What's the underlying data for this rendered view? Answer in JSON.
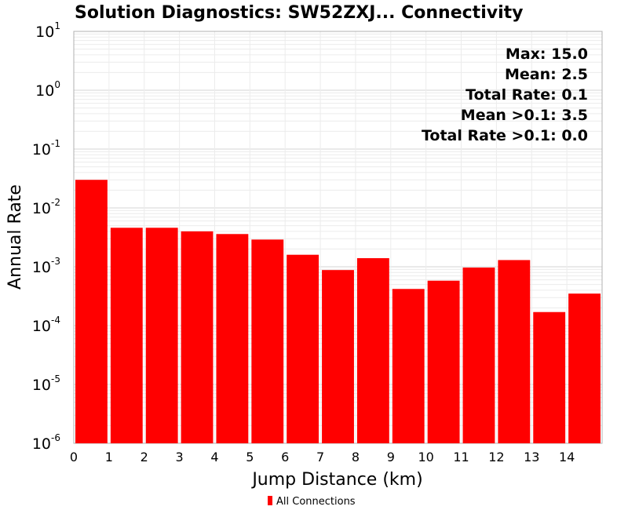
{
  "chart_data": {
    "type": "bar",
    "title": "Solution Diagnostics: SW52ZXJ... Connectivity",
    "xlabel": "Jump Distance (km)",
    "ylabel": "Annual Rate",
    "yscale": "log",
    "ylim": [
      1e-06,
      10
    ],
    "xlim": [
      0,
      15
    ],
    "x_ticks": [
      "0",
      "1",
      "2",
      "3",
      "4",
      "5",
      "6",
      "7",
      "8",
      "9",
      "10",
      "11",
      "12",
      "13",
      "14"
    ],
    "y_ticks": [
      {
        "base": "10",
        "exp": "1"
      },
      {
        "base": "10",
        "exp": "0"
      },
      {
        "base": "10",
        "exp": "-1"
      },
      {
        "base": "10",
        "exp": "-2"
      },
      {
        "base": "10",
        "exp": "-3"
      },
      {
        "base": "10",
        "exp": "-4"
      },
      {
        "base": "10",
        "exp": "-5"
      },
      {
        "base": "10",
        "exp": "-6"
      }
    ],
    "grid": true,
    "legend_position": "bottom-center",
    "series": [
      {
        "name": "All Connections",
        "color": "#ff0000",
        "bin_starts": [
          0,
          1,
          2,
          3,
          4,
          5,
          6,
          7,
          8,
          9,
          10,
          11,
          12,
          13,
          14
        ],
        "bin_width": 1,
        "values": [
          0.03,
          0.0046,
          0.0046,
          0.004,
          0.0036,
          0.0029,
          0.0016,
          0.00088,
          0.0014,
          0.00042,
          0.00058,
          0.00097,
          0.0013,
          0.00017,
          0.00035
        ]
      }
    ],
    "annotations": [
      "Max: 15.0",
      "Mean: 2.5",
      "Total Rate: 0.1",
      "Mean >0.1: 3.5",
      "Total Rate >0.1: 0.0"
    ]
  }
}
